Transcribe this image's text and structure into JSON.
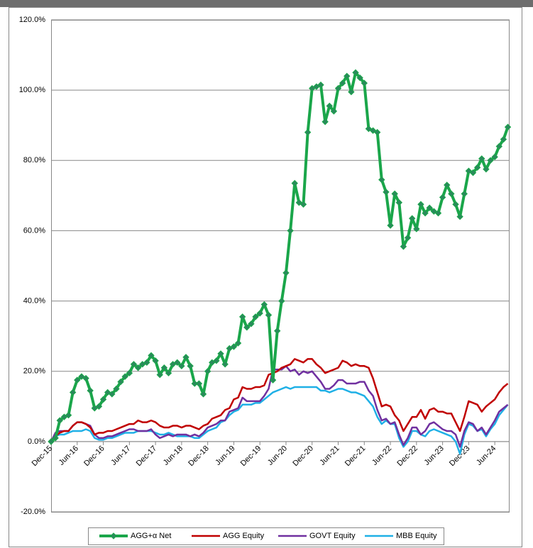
{
  "chart_data": {
    "type": "line",
    "categories": [
      "Dec-15",
      null,
      null,
      null,
      null,
      null,
      "Jun-16",
      null,
      null,
      null,
      null,
      null,
      "Dec-16",
      null,
      null,
      null,
      null,
      null,
      "Jun-17",
      null,
      null,
      null,
      null,
      null,
      "Dec-17",
      null,
      null,
      null,
      null,
      null,
      "Jun-18",
      null,
      null,
      null,
      null,
      null,
      "Dec-18",
      null,
      null,
      null,
      null,
      null,
      "Jun-19",
      null,
      null,
      null,
      null,
      null,
      "Dec-19",
      null,
      null,
      null,
      null,
      null,
      "Jun-20",
      null,
      null,
      null,
      null,
      null,
      "Dec-20",
      null,
      null,
      null,
      null,
      null,
      "Jun-21",
      null,
      null,
      null,
      null,
      null,
      "Dec-21",
      null,
      null,
      null,
      null,
      null,
      "Jun-22",
      null,
      null,
      null,
      null,
      null,
      "Dec-22",
      null,
      null,
      null,
      null,
      null,
      "Jun-23",
      null,
      null,
      null,
      null,
      null,
      "Dec-23",
      null,
      null,
      null,
      null,
      null,
      "Jun-24",
      null,
      null,
      null
    ],
    "series": [
      {
        "name": "AGG+α Net",
        "color": "#1aa64a",
        "marker": "diamond",
        "values": [
          0,
          1,
          6,
          7,
          7.5,
          14,
          17.5,
          18.5,
          18,
          14.5,
          9.5,
          10,
          12,
          14,
          13.5,
          15,
          17,
          18.5,
          19.5,
          22,
          21,
          22,
          22.5,
          24.5,
          23,
          19,
          21,
          19.5,
          22,
          22.5,
          21.5,
          24,
          21.5,
          16.5,
          16.5,
          13.5,
          20,
          22.5,
          23,
          25,
          22,
          26.5,
          27,
          28,
          35.5,
          32.5,
          33.5,
          35.5,
          36.5,
          39,
          36,
          17.5,
          31.5,
          40,
          48,
          60,
          73.5,
          68,
          67.5,
          88,
          100.5,
          101,
          101.5,
          91,
          95.5,
          94,
          100.5,
          102,
          104,
          99.5,
          105,
          103.5,
          102,
          89,
          88.5,
          88,
          74.5,
          71,
          61.5,
          70.5,
          68,
          55.5,
          58,
          63.5,
          60.5,
          67.5,
          65,
          66.5,
          65.5,
          65,
          69.5,
          73,
          70.5,
          67.5,
          64,
          70.5,
          77,
          76.5,
          78,
          80.5,
          77.5,
          80,
          81,
          84,
          86,
          89.5
        ]
      },
      {
        "name": "AGG Equity",
        "color": "#c00000",
        "values": [
          0,
          1.5,
          2.5,
          3,
          3,
          4.5,
          5.5,
          5.5,
          5,
          4,
          2,
          2.5,
          2.5,
          3,
          3,
          3.5,
          4,
          4.5,
          5,
          5,
          6,
          5.5,
          5.5,
          6,
          5.5,
          4.5,
          4,
          4,
          4.5,
          4.5,
          4,
          4.5,
          4.5,
          4,
          3.5,
          4.5,
          5,
          6.5,
          7,
          7.5,
          9,
          9.5,
          12,
          12.5,
          15.5,
          15,
          15,
          15.5,
          15.5,
          16,
          19,
          19.5,
          20,
          21,
          21.5,
          22,
          23.5,
          23,
          22.5,
          23.5,
          23.5,
          22,
          21,
          19.5,
          20,
          20.5,
          21,
          23,
          22.5,
          21.5,
          22,
          21.5,
          21.5,
          21,
          18,
          14,
          10,
          10.5,
          10,
          7.5,
          6,
          3,
          5,
          7,
          7,
          9,
          6.5,
          9,
          9.5,
          8.5,
          8.5,
          8,
          8,
          5.5,
          3,
          7,
          11.5,
          11,
          10.5,
          8.5,
          10,
          11,
          12,
          14,
          15.5,
          16.5
        ]
      },
      {
        "name": "GOVT Equity",
        "color": "#7030a0",
        "values": [
          0,
          2.5,
          3,
          3,
          3,
          4.5,
          5.5,
          5.5,
          5,
          4.5,
          2,
          1,
          1,
          1.5,
          1.5,
          2,
          2.5,
          3,
          3.5,
          3.5,
          3,
          3,
          3,
          3.5,
          2,
          1,
          1.5,
          2,
          1.5,
          2,
          2,
          2,
          1.5,
          2,
          1.5,
          2.5,
          4,
          4.5,
          5,
          6,
          6,
          8.5,
          9,
          9.5,
          12.5,
          11.5,
          11.5,
          11.5,
          11.5,
          13,
          15,
          20.5,
          20.5,
          20.5,
          21.5,
          20,
          20.5,
          19,
          20,
          19.5,
          20,
          18.5,
          17,
          15,
          15,
          16,
          17.5,
          17.5,
          16.5,
          16.5,
          16.5,
          17,
          17,
          14.5,
          13,
          9,
          6,
          6.5,
          5,
          5.5,
          2,
          -1,
          1,
          4,
          4,
          2,
          3,
          5,
          5.5,
          4.5,
          3.5,
          3,
          3,
          2,
          -1.5,
          3,
          5.5,
          5,
          3,
          4,
          2,
          4,
          6,
          8.5,
          9.5,
          10.5
        ]
      },
      {
        "name": "MBB Equity",
        "color": "#1fb0e6",
        "values": [
          0,
          1.5,
          2,
          2,
          2.5,
          3,
          3,
          3,
          3.5,
          3,
          1,
          0.5,
          0.5,
          1,
          1,
          1.5,
          2,
          2.5,
          2.5,
          2.5,
          3,
          3,
          3,
          3,
          2.5,
          2,
          2,
          2.5,
          2,
          1.5,
          1.5,
          1.5,
          1.5,
          1,
          1,
          2,
          3,
          3.5,
          4,
          5.5,
          6,
          7.5,
          8.5,
          9,
          10.5,
          10.5,
          10.5,
          11,
          11,
          12,
          13,
          14,
          14.5,
          15,
          15.5,
          15,
          15.5,
          15.5,
          15.5,
          15.5,
          15.5,
          15.5,
          14.5,
          14.5,
          14,
          14.5,
          15,
          15,
          14.5,
          14,
          14,
          13.5,
          13,
          11.5,
          10,
          7,
          5,
          6,
          5,
          5,
          1,
          -1.5,
          0,
          3,
          3,
          2,
          1.5,
          3,
          3.5,
          3,
          2.5,
          2,
          1.5,
          0,
          -3.5,
          2,
          5,
          4.5,
          3,
          3.5,
          1.5,
          3.5,
          5,
          7.5,
          9,
          10.5
        ]
      }
    ],
    "ylim": [
      -20,
      120
    ],
    "yticks": [
      {
        "value": -20,
        "label": "-20.0%"
      },
      {
        "value": 0,
        "label": "0.0%"
      },
      {
        "value": 20,
        "label": "20.0%"
      },
      {
        "value": 40,
        "label": "40.0%"
      },
      {
        "value": 60,
        "label": "60.0%"
      },
      {
        "value": 80,
        "label": "80.0%"
      },
      {
        "value": 100,
        "label": "100.0%"
      },
      {
        "value": 120,
        "label": "120.0%"
      }
    ],
    "grid": true,
    "legend": "bottom"
  }
}
